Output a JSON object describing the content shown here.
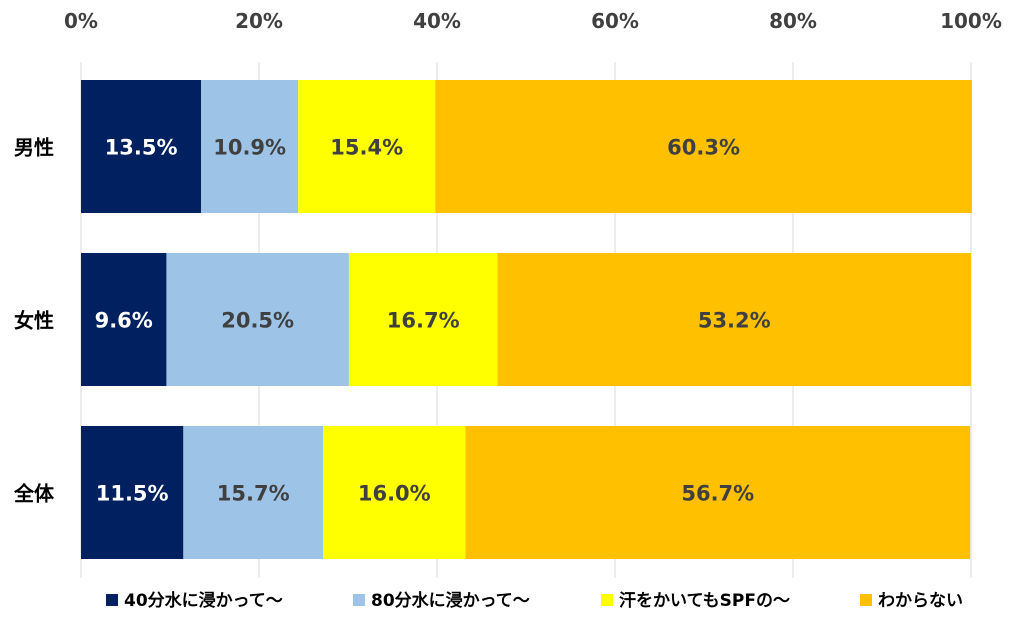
{
  "chart_data": {
    "type": "bar",
    "orientation": "horizontal",
    "stacked": "percent",
    "categories": [
      "男性",
      "女性",
      "全体"
    ],
    "series": [
      {
        "name": "40分水に浸かって～",
        "values": [
          13.5,
          9.6,
          11.5
        ],
        "labels": [
          "13.5%",
          "9.6%",
          "11.5%"
        ],
        "color": "#002060",
        "label_color": "#ffffff"
      },
      {
        "name": "80分水に浸かって～",
        "values": [
          10.9,
          20.5,
          15.7
        ],
        "labels": [
          "10.9%",
          "20.5%",
          "15.7%"
        ],
        "color": "#9dc3e6",
        "label_color": "#404040"
      },
      {
        "name": "汗をかいてもSPFの～",
        "values": [
          15.4,
          16.7,
          16.0
        ],
        "labels": [
          "15.4%",
          "16.7%",
          "16.0%"
        ],
        "color": "#ffff00",
        "label_color": "#404040"
      },
      {
        "name": "わからない",
        "values": [
          60.3,
          53.2,
          56.7
        ],
        "labels": [
          "60.3%",
          "53.2%",
          "56.7%"
        ],
        "color": "#ffc000",
        "label_color": "#404040"
      }
    ],
    "x_ticks": [
      "0%",
      "20%",
      "40%",
      "60%",
      "80%",
      "100%"
    ],
    "xlim": [
      0,
      100
    ],
    "x_axis_position": "top",
    "grid": true,
    "legend": "bottom",
    "title": "",
    "xlabel": "",
    "ylabel": ""
  }
}
